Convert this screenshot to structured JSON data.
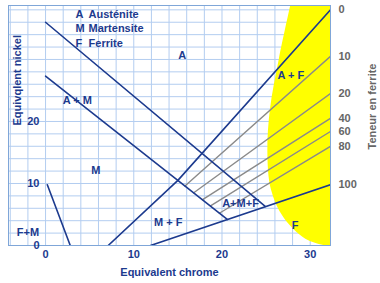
{
  "chart_data": {
    "type": "line",
    "xlabel": "Equivalent chrome",
    "ylabel": "Equivqlent nickel",
    "xlim": [
      -4.2,
      32.3
    ],
    "xticks": [
      0,
      10,
      20,
      30
    ],
    "ylim": [
      0,
      38.7
    ],
    "yticks": [
      0,
      10,
      20
    ],
    "grid": true,
    "series": [
      {
        "x": [
          0,
          24.9
        ],
        "y": [
          36,
          6.3
        ],
        "color": "#1c3a8e"
      },
      {
        "x": [
          0,
          20.6
        ],
        "y": [
          27.3,
          4.2
        ],
        "color": "#1c3a8e"
      },
      {
        "x": [
          7.1,
          15
        ],
        "y": [
          0,
          10.5
        ],
        "color": "#1c3a8e"
      },
      {
        "x": [
          0.2,
          2.8
        ],
        "y": [
          9.8,
          0
        ],
        "color": "#1c3a8e"
      }
    ],
    "ferrite_label": "Teneur en ferrite",
    "ferrite_lines": [
      {
        "ferrite_content": 0,
        "x": [
          15,
          32.3
        ],
        "y": [
          10.5,
          38
        ],
        "color": "#1c3a8e"
      },
      {
        "ferrite_content": 10,
        "x": [
          15.8,
          32.3
        ],
        "y": [
          9.6,
          30.5
        ],
        "color": "#8a8a8a"
      },
      {
        "ferrite_content": 20,
        "x": [
          16.8,
          32.3
        ],
        "y": [
          8.5,
          24.5
        ],
        "color": "#8a8a8a"
      },
      {
        "ferrite_content": 40,
        "x": [
          17.8,
          32.3
        ],
        "y": [
          7.4,
          20.5
        ],
        "color": "#8a8a8a"
      },
      {
        "ferrite_content": 60,
        "x": [
          18.7,
          32.3
        ],
        "y": [
          6.4,
          18.4
        ],
        "color": "#8a8a8a"
      },
      {
        "ferrite_content": 80,
        "x": [
          19.7,
          32.3
        ],
        "y": [
          5.2,
          16
        ],
        "color": "#8a8a8a"
      },
      {
        "ferrite_content": 100,
        "x": [
          11.9,
          32.3
        ],
        "y": [
          0,
          9.8
        ],
        "color": "#1c3a8e"
      }
    ],
    "ferrite_zone": {
      "boundary_x": [
        31.5,
        29.5,
        27,
        25.6,
        25.2,
        25.5,
        26.5,
        27.8
      ],
      "boundary_y": [
        0,
        1,
        4.5,
        9,
        15,
        22,
        30,
        38.7
      ],
      "color": "#ffff00"
    },
    "key": [
      {
        "symbol": "A",
        "text": "Austénite",
        "x": 3.4,
        "y": 37.3
      },
      {
        "symbol": "M",
        "text": "Martensite",
        "x": 3.4,
        "y": 35
      },
      {
        "symbol": "F",
        "text": "Ferrite",
        "x": 3.4,
        "y": 32.6
      }
    ],
    "annotations": [
      {
        "text": "A",
        "x": 15.5,
        "y": 30.6
      },
      {
        "text": "A + M",
        "x": 3.6,
        "y": 23.4
      },
      {
        "text": "M",
        "x": 5.7,
        "y": 12.1
      },
      {
        "text": "F+M",
        "x": -2.0,
        "y": 2.1
      },
      {
        "text": "M + F",
        "x": 13.9,
        "y": 3.7
      },
      {
        "text": "A+M+F",
        "x": 22.1,
        "y": 6.8
      },
      {
        "text": "A + F",
        "x": 27.8,
        "y": 27.4
      },
      {
        "text": "F",
        "x": 28.3,
        "y": 3.2
      }
    ]
  }
}
